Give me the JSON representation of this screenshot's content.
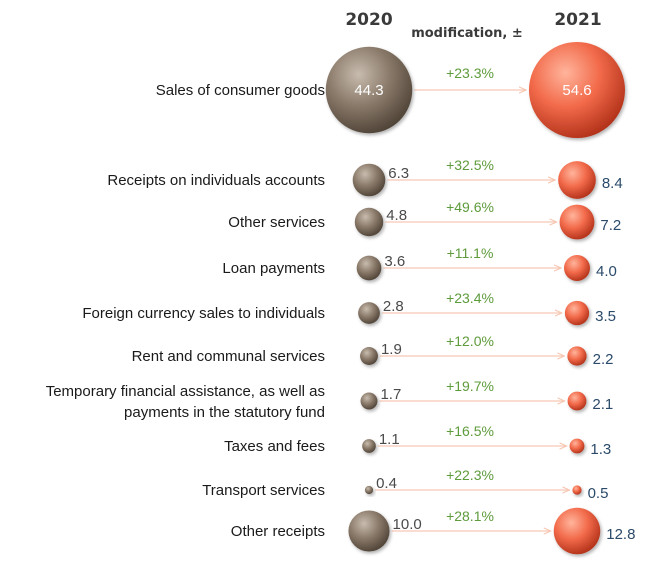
{
  "chart_data": {
    "type": "bubble",
    "title": "",
    "header_2020": "2020",
    "header_2021": "2021",
    "header_change": "modification, ±",
    "colors": {
      "bubble_2020": "#8a7a6a",
      "bubble_2021": "#f26a4a",
      "arrow": "#f6c8b4",
      "change_text": "#5e9b3b",
      "value_2021_text": "#2a4a6a"
    },
    "categories": [
      "Sales of consumer goods",
      "Receipts on individuals accounts",
      "Other services",
      "Loan payments",
      "Foreign currency sales to individuals",
      "Rent and communal services",
      "Temporary financial assistance, as well as payments in the statutory fund",
      "Taxes and fees",
      "Transport services",
      "Other receipts"
    ],
    "category_lines": [
      [
        "Sales of consumer goods"
      ],
      [
        "Receipts on individuals accounts"
      ],
      [
        "Other services"
      ],
      [
        "Loan payments"
      ],
      [
        "Foreign currency sales to individuals"
      ],
      [
        "Rent and communal services"
      ],
      [
        "Temporary financial assistance, as well as",
        "payments in the statutory fund"
      ],
      [
        "Taxes and fees"
      ],
      [
        "Transport services"
      ],
      [
        "Other receipts"
      ]
    ],
    "series": [
      {
        "name": "2020",
        "values": [
          44.3,
          6.3,
          4.8,
          3.6,
          2.8,
          1.9,
          1.7,
          1.1,
          0.4,
          10.0
        ]
      },
      {
        "name": "2021",
        "values": [
          54.6,
          8.4,
          7.2,
          4.0,
          3.5,
          2.2,
          2.1,
          1.3,
          0.5,
          12.8
        ]
      }
    ],
    "labels_2020": [
      "44.3",
      "6.3",
      "4.8",
      "3.6",
      "2.8",
      "1.9",
      "1.7",
      "1.1",
      "0.4",
      "10.0"
    ],
    "labels_2021": [
      "54.6",
      "8.4",
      "7.2",
      "4.0",
      "3.5",
      "2.2",
      "2.1",
      "1.3",
      "0.5",
      "12.8"
    ],
    "change": [
      "+23.3%",
      "+32.5%",
      "+49.6%",
      "+11.1%",
      "+23.4%",
      "+12.0%",
      "+19.7%",
      "+16.5%",
      "+22.3%",
      "+28.1%"
    ]
  }
}
